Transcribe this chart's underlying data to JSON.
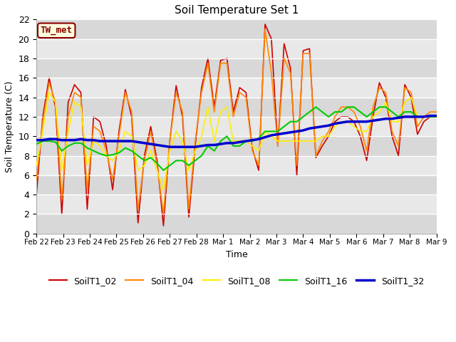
{
  "title": "Soil Temperature Set 1",
  "xlabel": "Time",
  "ylabel": "Soil Temperature (C)",
  "ylim": [
    0,
    22
  ],
  "yticks": [
    0,
    2,
    4,
    6,
    8,
    10,
    12,
    14,
    16,
    18,
    20,
    22
  ],
  "xtick_labels": [
    "Feb 22",
    "Feb 23",
    "Feb 24",
    "Feb 25",
    "Feb 26",
    "Feb 27",
    "Feb 28",
    "Mar 1",
    "Mar 2",
    "Mar 3",
    "Mar 4",
    "Mar 5",
    "Mar 6",
    "Mar 7",
    "Mar 8",
    "Mar 9"
  ],
  "annotation_text": "TW_met",
  "fig_bg": "#ffffff",
  "plot_bg": "#e8e8e8",
  "series_colors": {
    "SoilT1_02": "#cc0000",
    "SoilT1_04": "#ff8800",
    "SoilT1_08": "#ffee00",
    "SoilT1_16": "#00cc00",
    "SoilT1_32": "#0000cc"
  },
  "SoilT1_02": [
    4.0,
    12.0,
    16.0,
    13.0,
    2.0,
    13.5,
    15.3,
    14.5,
    2.5,
    12.0,
    11.5,
    9.0,
    4.5,
    10.5,
    14.8,
    12.0,
    1.1,
    8.0,
    11.0,
    7.5,
    0.8,
    9.5,
    15.2,
    12.0,
    1.7,
    9.0,
    15.0,
    18.0,
    13.0,
    17.8,
    18.0,
    12.5,
    15.0,
    14.5,
    8.7,
    6.5,
    21.5,
    20.0,
    9.0,
    19.5,
    17.0,
    6.0,
    18.8,
    19.0,
    7.8,
    9.0,
    10.0,
    11.5,
    12.0,
    12.0,
    11.5,
    10.0,
    7.5,
    12.0,
    15.5,
    14.0,
    10.0,
    8.0,
    15.3,
    14.0,
    10.2,
    11.5,
    12.0,
    12.0
  ],
  "SoilT1_04": [
    5.5,
    11.5,
    15.5,
    13.5,
    3.5,
    12.0,
    14.5,
    14.0,
    4.5,
    11.0,
    10.5,
    8.5,
    5.5,
    10.0,
    14.5,
    12.5,
    2.5,
    7.5,
    10.5,
    7.0,
    2.0,
    9.5,
    14.5,
    12.5,
    2.5,
    9.5,
    14.5,
    17.5,
    12.5,
    17.5,
    17.5,
    12.0,
    14.5,
    14.0,
    8.5,
    7.0,
    21.0,
    16.5,
    9.0,
    18.0,
    16.5,
    7.0,
    18.5,
    18.5,
    8.0,
    9.5,
    10.5,
    12.0,
    13.0,
    13.0,
    12.5,
    11.0,
    8.5,
    13.0,
    15.0,
    14.5,
    10.5,
    9.0,
    15.0,
    14.5,
    11.0,
    12.0,
    12.5,
    12.5
  ],
  "SoilT1_08": [
    7.0,
    10.5,
    14.5,
    13.5,
    6.5,
    10.5,
    13.5,
    13.0,
    7.0,
    9.5,
    9.0,
    8.0,
    7.5,
    8.5,
    10.5,
    10.0,
    6.5,
    7.0,
    8.5,
    6.5,
    4.5,
    8.5,
    10.5,
    9.5,
    6.5,
    8.5,
    10.0,
    13.0,
    9.5,
    12.5,
    13.0,
    9.5,
    9.5,
    9.5,
    9.0,
    8.5,
    10.5,
    10.0,
    9.5,
    9.5,
    9.5,
    9.5,
    9.5,
    9.5,
    9.5,
    10.0,
    10.0,
    11.0,
    11.5,
    11.5,
    11.0,
    10.5,
    10.5,
    12.0,
    12.5,
    13.5,
    11.5,
    11.5,
    13.5,
    14.0,
    12.0,
    12.0,
    12.0,
    12.0
  ],
  "SoilT1_16": [
    9.2,
    9.5,
    9.5,
    9.4,
    8.5,
    9.0,
    9.3,
    9.3,
    8.8,
    8.5,
    8.2,
    8.0,
    8.1,
    8.3,
    8.8,
    8.5,
    8.0,
    7.5,
    7.8,
    7.2,
    6.5,
    7.0,
    7.5,
    7.5,
    7.0,
    7.5,
    8.0,
    9.0,
    8.5,
    9.5,
    10.0,
    9.0,
    9.0,
    9.5,
    9.5,
    9.8,
    10.5,
    10.5,
    10.5,
    11.0,
    11.5,
    11.5,
    12.0,
    12.5,
    13.0,
    12.5,
    12.0,
    12.5,
    12.5,
    13.0,
    13.0,
    12.5,
    12.0,
    12.5,
    13.0,
    13.0,
    12.5,
    12.0,
    12.5,
    12.5,
    12.0,
    12.0,
    12.0,
    12.0
  ],
  "SoilT1_32": [
    9.6,
    9.6,
    9.7,
    9.7,
    9.6,
    9.6,
    9.6,
    9.7,
    9.6,
    9.6,
    9.5,
    9.5,
    9.5,
    9.5,
    9.5,
    9.5,
    9.4,
    9.3,
    9.2,
    9.1,
    9.0,
    8.9,
    8.9,
    8.9,
    8.9,
    8.9,
    9.0,
    9.1,
    9.1,
    9.2,
    9.3,
    9.3,
    9.4,
    9.5,
    9.6,
    9.7,
    9.9,
    10.1,
    10.2,
    10.3,
    10.4,
    10.5,
    10.6,
    10.8,
    10.9,
    11.0,
    11.1,
    11.3,
    11.4,
    11.5,
    11.5,
    11.5,
    11.5,
    11.6,
    11.7,
    11.8,
    11.8,
    11.9,
    12.0,
    12.0,
    12.0,
    12.0,
    12.1,
    12.1
  ]
}
